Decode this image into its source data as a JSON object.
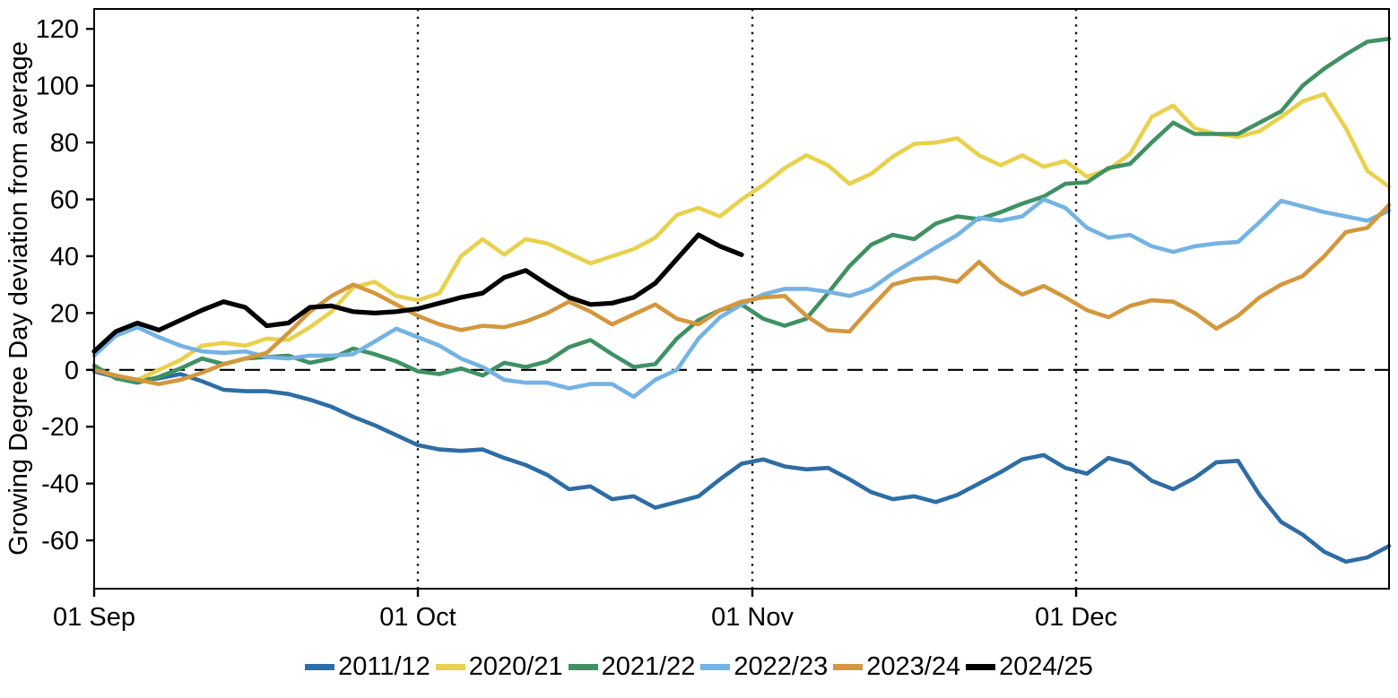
{
  "chart_data": {
    "type": "line",
    "title": "",
    "xlabel": "",
    "ylabel": "Growing Degree Day deviation from average",
    "ylim": [
      -77,
      127
    ],
    "x_domain_days": [
      0,
      120
    ],
    "sample_step_days": 2,
    "start_date_label": "01 Sep",
    "grid": "month-dotted-verticals",
    "zero_reference_line": true,
    "legend_position": "bottom-center",
    "y_ticks": [
      120,
      100,
      80,
      60,
      40,
      20,
      0,
      -20,
      -40,
      -60
    ],
    "x_ticks": [
      {
        "label": "01 Sep",
        "day": 0
      },
      {
        "label": "01 Oct",
        "day": 30
      },
      {
        "label": "01 Nov",
        "day": 61
      },
      {
        "label": "01 Dec",
        "day": 91
      }
    ],
    "month_gridline_days": [
      30,
      61,
      91
    ],
    "series": [
      {
        "name": "2011/12",
        "color": "#2e6da4",
        "values": [
          -0.5,
          -2.5,
          -3.5,
          -3,
          -1.5,
          -4,
          -7,
          -7.5,
          -7.5,
          -8.5,
          -10.5,
          -13,
          -16.5,
          -19.5,
          -23,
          -26.5,
          -28,
          -28.5,
          -28,
          -31,
          -33.5,
          -37,
          -42,
          -41,
          -45.5,
          -44.5,
          -48.5,
          -46.5,
          -44.5,
          -38.5,
          -33,
          -31.5,
          -34,
          -35,
          -34.5,
          -38.5,
          -43,
          -45.5,
          -44.5,
          -46.5,
          -44,
          -40,
          -36,
          -31.5,
          -30,
          -34.5,
          -36.5,
          -31,
          -33,
          -39,
          -42,
          -38,
          -32.5,
          -32,
          -44,
          -53.5,
          -58,
          -64,
          -67.5,
          -66,
          -62
        ]
      },
      {
        "name": "2020/21",
        "color": "#e8d14c",
        "values": [
          0.5,
          -2.5,
          -3.5,
          0,
          3.5,
          8.5,
          9.5,
          8.5,
          11,
          10.5,
          15,
          20.5,
          29,
          31,
          26,
          24.5,
          27,
          40,
          46,
          40.5,
          46,
          44.5,
          41,
          37.5,
          40,
          42.5,
          46.5,
          54.5,
          57,
          54,
          60,
          65,
          71,
          75.5,
          72,
          65.5,
          69,
          75,
          79.5,
          80,
          81.5,
          75.5,
          72,
          75.5,
          71.5,
          73.5,
          68,
          70.5,
          76,
          89,
          93,
          85,
          83,
          82,
          84,
          89,
          94.5,
          97,
          85,
          70,
          64.5
        ]
      },
      {
        "name": "2021/22",
        "color": "#3f9164",
        "values": [
          1.5,
          -3,
          -4.5,
          -2.5,
          0.5,
          4,
          2,
          4,
          4.5,
          5,
          2.5,
          4,
          7.5,
          5.5,
          3,
          -0.5,
          -1.5,
          0.5,
          -2,
          2.5,
          1,
          3,
          8,
          10.5,
          5.5,
          1,
          2,
          11,
          17.5,
          21,
          23,
          18,
          15.5,
          18,
          27,
          36.5,
          44,
          47.5,
          46,
          51.5,
          54,
          53,
          55.5,
          58.5,
          61,
          65.5,
          66,
          71,
          72.5,
          80,
          87,
          83,
          83,
          83,
          87,
          91,
          100,
          106,
          111,
          115.5,
          116.5
        ]
      },
      {
        "name": "2022/23",
        "color": "#74b3e3",
        "values": [
          5,
          12,
          15,
          11.5,
          8.5,
          6.5,
          6,
          6.5,
          4.5,
          4,
          5,
          5,
          5.5,
          10,
          14.5,
          11.5,
          8.5,
          4,
          1,
          -3.5,
          -4.5,
          -4.5,
          -6.5,
          -5,
          -5,
          -9.5,
          -3.5,
          0,
          11,
          18.5,
          23,
          26.5,
          28.5,
          28.5,
          27.5,
          26,
          28.5,
          34,
          38.5,
          43,
          47.5,
          53.5,
          52.5,
          54,
          60,
          57,
          50,
          46.5,
          47.5,
          43.5,
          41.5,
          43.5,
          44.5,
          45,
          52,
          59.5,
          57.5,
          55.5,
          54,
          52.5,
          56
        ]
      },
      {
        "name": "2023/24",
        "color": "#d3973d",
        "values": [
          0,
          -2,
          -3.5,
          -5,
          -3.5,
          -1,
          2,
          4,
          6,
          13,
          20.5,
          26,
          30,
          27,
          23,
          19,
          16,
          14,
          15.5,
          15,
          17,
          20,
          24,
          20.5,
          16,
          19.5,
          23,
          18,
          16,
          21,
          24,
          25.5,
          26,
          19,
          14,
          13.5,
          22,
          30,
          32,
          32.5,
          31,
          38,
          31,
          26.5,
          29.5,
          25.5,
          21,
          18.5,
          22.5,
          24.5,
          24,
          20,
          14.5,
          19,
          25.5,
          30,
          33,
          40,
          48.5,
          50,
          58
        ]
      },
      {
        "name": "2024/25",
        "color": "#000000",
        "values": [
          6.5,
          13.5,
          16.5,
          14,
          17.5,
          21,
          24,
          22,
          15.5,
          16.5,
          22,
          22.5,
          20.5,
          20,
          20.5,
          21.5,
          23.5,
          25.5,
          27,
          32.5,
          35,
          30,
          25.5,
          23,
          23.5,
          25.5,
          30.5,
          39,
          47.5,
          43.5,
          40.5,
          null,
          null,
          null,
          null,
          null,
          null,
          null,
          null,
          null,
          null,
          null,
          null,
          null,
          null,
          null,
          null,
          null,
          null,
          null,
          null,
          null,
          null,
          null,
          null,
          null,
          null,
          null,
          null,
          null,
          null
        ]
      }
    ]
  }
}
